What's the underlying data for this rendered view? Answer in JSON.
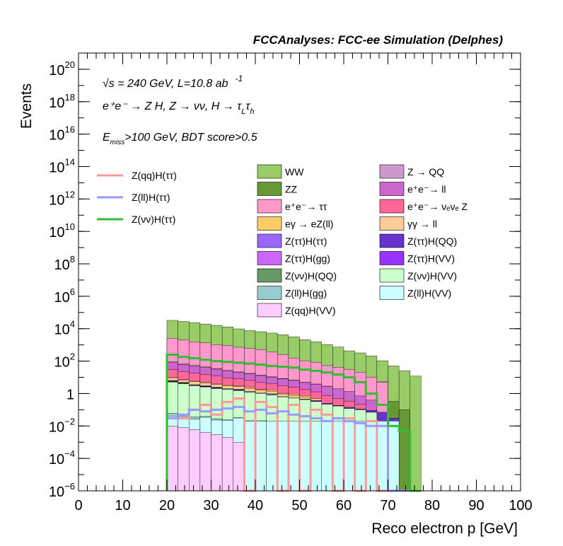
{
  "chart_data": {
    "type": "histogram",
    "title": "FCCAnalyses: FCC-ee Simulation (Delphes)",
    "xlabel": "Reco electron p [GeV]",
    "ylabel": "Events",
    "xlim": [
      0,
      100
    ],
    "ylim": [
      1e-06,
      1e+21
    ],
    "y_scale": "log",
    "bin_width": 2.5,
    "x_ticks": [
      "0",
      "10",
      "20",
      "30",
      "40",
      "50",
      "60",
      "70",
      "80",
      "90",
      "100"
    ],
    "y_ticks": [
      {
        "value": 1e-06,
        "label": "10",
        "exp": "−6"
      },
      {
        "value": 0.0001,
        "label": "10",
        "exp": "−4"
      },
      {
        "value": 0.01,
        "label": "10",
        "exp": "−2"
      },
      {
        "value": 1,
        "label": "1",
        "exp": ""
      },
      {
        "value": 100.0,
        "label": "10",
        "exp": "2"
      },
      {
        "value": 10000.0,
        "label": "10",
        "exp": "4"
      },
      {
        "value": 1000000.0,
        "label": "10",
        "exp": "6"
      },
      {
        "value": 100000000.0,
        "label": "10",
        "exp": "8"
      },
      {
        "value": 10000000000.0,
        "label": "10",
        "exp": "10"
      },
      {
        "value": 1000000000000.0,
        "label": "10",
        "exp": "12"
      },
      {
        "value": 100000000000000.0,
        "label": "10",
        "exp": "14"
      },
      {
        "value": 1e+16,
        "label": "10",
        "exp": "16"
      },
      {
        "value": 1e+18,
        "label": "10",
        "exp": "18"
      },
      {
        "value": 1e+20,
        "label": "10",
        "exp": "20"
      }
    ],
    "annotations": {
      "energy": "√s = 240 GeV, L=10.8 ab",
      "energy_exp": "-1",
      "process": "e⁺e⁻ → Z H, Z → νν, H → τ",
      "process_sub1": "L",
      "process_tau": "τ",
      "process_sub2": "h",
      "cut_prefix": "E",
      "cut_sub": "miss",
      "cut_rest": ">100 GeV, BDT score>0.5"
    },
    "stack_series": [
      {
        "name": "WW",
        "color": "#99cc66",
        "edge": "#000000",
        "values": [
          null,
          null,
          null,
          null,
          null,
          null,
          null,
          null,
          30000,
          26000,
          22000,
          18000,
          15000,
          12000,
          9000,
          7000,
          6000,
          5000,
          4000,
          3000,
          2000,
          1500,
          1000,
          700,
          400,
          300,
          200,
          100,
          50,
          25,
          12
        ]
      },
      {
        "name": "ZZ",
        "color": "#669933",
        "edge": "#000000",
        "values": [
          null,
          null,
          null,
          null,
          null,
          null,
          null,
          null,
          null,
          null,
          null,
          null,
          null,
          null,
          null,
          null,
          null,
          null,
          null,
          null,
          null,
          null,
          null,
          null,
          null,
          null,
          null,
          0.2,
          0.3,
          0.1,
          null
        ]
      },
      {
        "name": "e⁺e⁻→ ττ",
        "color": "#ff99cc",
        "edge": "#000000",
        "values": [
          null,
          null,
          null,
          null,
          null,
          null,
          null,
          null,
          2500,
          2000,
          1500,
          1300,
          1000,
          900,
          700,
          600,
          500,
          350,
          250,
          150,
          100,
          80,
          50,
          40,
          30,
          20,
          10,
          5,
          null,
          null,
          null
        ]
      },
      {
        "name": "Z → QQ",
        "color": "#cc99cc",
        "edge": "#000000",
        "values": [
          null,
          null,
          null,
          null,
          null,
          null,
          null,
          null,
          10,
          8,
          6,
          4,
          3,
          2,
          1.5,
          1,
          0.8,
          0.6,
          0.4,
          0.3,
          0.2,
          0.1,
          0.1,
          null,
          null,
          null,
          null,
          null,
          null,
          null,
          null
        ]
      },
      {
        "name": "e⁺e⁻→ ll",
        "color": "#cc66cc",
        "edge": "#000000",
        "values": [
          null,
          null,
          null,
          null,
          null,
          null,
          null,
          null,
          50,
          40,
          30,
          25,
          20,
          15,
          12,
          10,
          8,
          6,
          5,
          4,
          3,
          2.5,
          2,
          1.5,
          1,
          0.5,
          0.3,
          null,
          null,
          null,
          null
        ]
      },
      {
        "name": "e⁺e⁻→ νₑνₑ Z",
        "color": "#ff6699",
        "edge": "#000000",
        "values": [
          null,
          null,
          null,
          null,
          null,
          null,
          null,
          null,
          20,
          15,
          12,
          10,
          8,
          6,
          5,
          4,
          3,
          2.5,
          2,
          1.5,
          1,
          0.8,
          0.5,
          0.3,
          0.2,
          0.1,
          null,
          null,
          null,
          null,
          null
        ]
      },
      {
        "name": "eγ → eZ(ll)",
        "color": "#ffcc66",
        "edge": "#000000",
        "values": [
          null,
          null,
          null,
          null,
          null,
          null,
          null,
          null,
          0.8,
          0.4,
          0.3,
          0.5,
          0.2,
          0.4,
          0.3,
          0.5,
          0.2,
          0.3,
          0.1,
          0.2,
          0.15,
          0.1,
          null,
          null,
          null,
          null,
          null,
          null,
          null,
          null,
          null
        ]
      },
      {
        "name": "γγ → ll",
        "color": "#ffcc99",
        "edge": "#000000",
        "values": [
          null,
          null,
          null,
          null,
          null,
          null,
          null,
          null,
          3,
          2,
          2,
          1.5,
          1.2,
          1,
          0.8,
          0.6,
          0.5,
          0.4,
          0.3,
          0.2,
          0.15,
          null,
          null,
          null,
          null,
          null,
          null,
          null,
          null,
          null,
          null
        ]
      },
      {
        "name": "Z(ττ)H(ττ)",
        "color": "#9966ff",
        "edge": "#000000",
        "values": [
          null,
          null,
          null,
          null,
          null,
          null,
          null,
          null,
          0.5,
          0.3,
          0.2,
          0.3,
          0.2,
          0.1,
          0.2,
          0.1,
          null,
          0.1,
          null,
          null,
          null,
          null,
          null,
          null,
          null,
          null,
          null,
          null,
          null,
          null,
          null
        ]
      },
      {
        "name": "Z(ττ)H(QQ)",
        "color": "#6633cc",
        "edge": "#000000",
        "values": [
          null,
          null,
          null,
          null,
          null,
          null,
          null,
          null,
          0.05,
          0.02,
          0.001,
          0.01,
          0.05,
          0.0001,
          0.03,
          1e-05,
          0.05,
          0.02,
          0.01,
          0.005,
          0.02,
          0.05,
          0.03,
          0.01,
          0.02,
          0.01,
          0.02,
          0.05,
          0.01,
          null,
          null
        ]
      },
      {
        "name": "Z(ττ)H(gg)",
        "color": "#cc66ff",
        "edge": "#000000",
        "values": [
          null,
          null,
          null,
          null,
          null,
          null,
          null,
          null,
          0.3,
          0.2,
          0.1,
          0.05,
          0.1,
          0.02,
          0.05,
          null,
          null,
          null,
          null,
          null,
          null,
          null,
          null,
          null,
          null,
          null,
          null,
          null,
          null,
          null,
          null
        ]
      },
      {
        "name": "Z(ττ)H(VV)",
        "color": "#9933ff",
        "edge": "#000000",
        "values": [
          null,
          null,
          null,
          null,
          null,
          null,
          null,
          null,
          0.2,
          0.1,
          0.05,
          0.1,
          0.05,
          0.02,
          0.03,
          0.02,
          0.01,
          0.02,
          0.01,
          0.005,
          0.01,
          0.005,
          0.002,
          0.005,
          0.001,
          0.002,
          0.001,
          null,
          null,
          null,
          null
        ]
      },
      {
        "name": "Z(νν)H(QQ)",
        "color": "#669966",
        "edge": "#000000",
        "values": [
          null,
          null,
          null,
          null,
          null,
          null,
          null,
          null,
          0.3,
          0.2,
          0.1,
          0.1,
          0.05,
          0.02,
          0.02,
          0.01,
          null,
          null,
          null,
          null,
          null,
          null,
          null,
          null,
          null,
          null,
          null,
          null,
          null,
          null,
          null
        ]
      },
      {
        "name": "Z(νν)H(VV)",
        "color": "#ccffcc",
        "edge": "#000000",
        "values": [
          null,
          null,
          null,
          null,
          null,
          null,
          null,
          null,
          5,
          4,
          3,
          2.5,
          2,
          1.8,
          1.5,
          1.2,
          1,
          0.8,
          0.6,
          0.5,
          0.4,
          0.3,
          0.2,
          0.15,
          0.1,
          0.08,
          0.05,
          null,
          null,
          null,
          null
        ]
      },
      {
        "name": "Z(ll)H(gg)",
        "color": "#99cccc",
        "edge": "#000000",
        "values": [
          null,
          null,
          null,
          null,
          null,
          null,
          null,
          null,
          0.02,
          0.01,
          0.01,
          0.005,
          0.005,
          0.002,
          0.002,
          0.001,
          0.001,
          null,
          null,
          null,
          null,
          null,
          null,
          null,
          null,
          null,
          null,
          null,
          null,
          null,
          null
        ]
      },
      {
        "name": "Z(ll)H(VV)",
        "color": "#ccffff",
        "edge": "#000000",
        "values": [
          null,
          null,
          null,
          null,
          null,
          null,
          null,
          null,
          0.03,
          0.03,
          0.02,
          0.03,
          0.02,
          0.02,
          0.03,
          0.02,
          0.02,
          0.02,
          0.02,
          0.02,
          0.02,
          0.02,
          0.02,
          0.02,
          0.02,
          0.02,
          0.02,
          0.02,
          0.02,
          null,
          null
        ]
      },
      {
        "name": "Z(qq)H(VV)",
        "color": "#ffccff",
        "edge": "#000000",
        "values": [
          null,
          null,
          null,
          null,
          null,
          null,
          null,
          null,
          0.01,
          0.008,
          0.006,
          0.004,
          0.003,
          0.002,
          0.001,
          null,
          null,
          null,
          null,
          null,
          null,
          null,
          null,
          null,
          null,
          null,
          null,
          null,
          null,
          null,
          null
        ]
      }
    ],
    "line_series": [
      {
        "name": "Z(qq)H(ττ)",
        "color": "#ff9999",
        "values": [
          null,
          null,
          null,
          null,
          null,
          null,
          null,
          null,
          0.03,
          0.03,
          0.1,
          0.2,
          0.05,
          0.3,
          0.5,
          1e-06,
          0.3,
          0.15,
          1e-06,
          0.2,
          1e-06,
          0.1,
          0.05,
          1e-06,
          0.03,
          1e-06,
          0.02,
          1e-06,
          1e-06,
          1e-06,
          1e-06
        ]
      },
      {
        "name": "Z(ll)H(ττ)",
        "color": "#9999ff",
        "values": [
          null,
          null,
          null,
          null,
          null,
          null,
          null,
          null,
          0.03,
          0.05,
          0.1,
          0.08,
          0.1,
          0.12,
          0.15,
          0.08,
          0.1,
          0.06,
          0.08,
          0.05,
          0.04,
          0.03,
          0.02,
          0.03,
          0.02,
          0.015,
          0.01,
          0.01,
          1e-06,
          1e-06,
          1e-06
        ]
      },
      {
        "name": "Z(νν)H(ττ)",
        "color": "#33bb33",
        "values": [
          null,
          null,
          null,
          null,
          null,
          null,
          null,
          null,
          250,
          180,
          150,
          120,
          100,
          90,
          80,
          70,
          60,
          50,
          45,
          40,
          30,
          25,
          20,
          15,
          10,
          5,
          1,
          0.2,
          0.01,
          0.005,
          1e-06
        ]
      }
    ],
    "legend_lines_order": [
      "Z(qq)H(ττ)",
      "Z(ll)H(ττ)",
      "Z(νν)H(ττ)"
    ],
    "legend_col1": [
      "WW",
      "ZZ",
      "e⁺e⁻→ ττ",
      "eγ → eZ(ll)",
      "Z(ττ)H(ττ)",
      "Z(ττ)H(gg)",
      "Z(νν)H(QQ)",
      "Z(ll)H(gg)",
      "Z(qq)H(VV)"
    ],
    "legend_col2": [
      "Z → QQ",
      "e⁺e⁻→ ll",
      "e⁺e⁻→ νₑνₑ Z",
      "γγ → ll",
      "Z(ττ)H(QQ)",
      "Z(ττ)H(VV)",
      "Z(νν)H(VV)",
      "Z(ll)H(VV)"
    ]
  }
}
